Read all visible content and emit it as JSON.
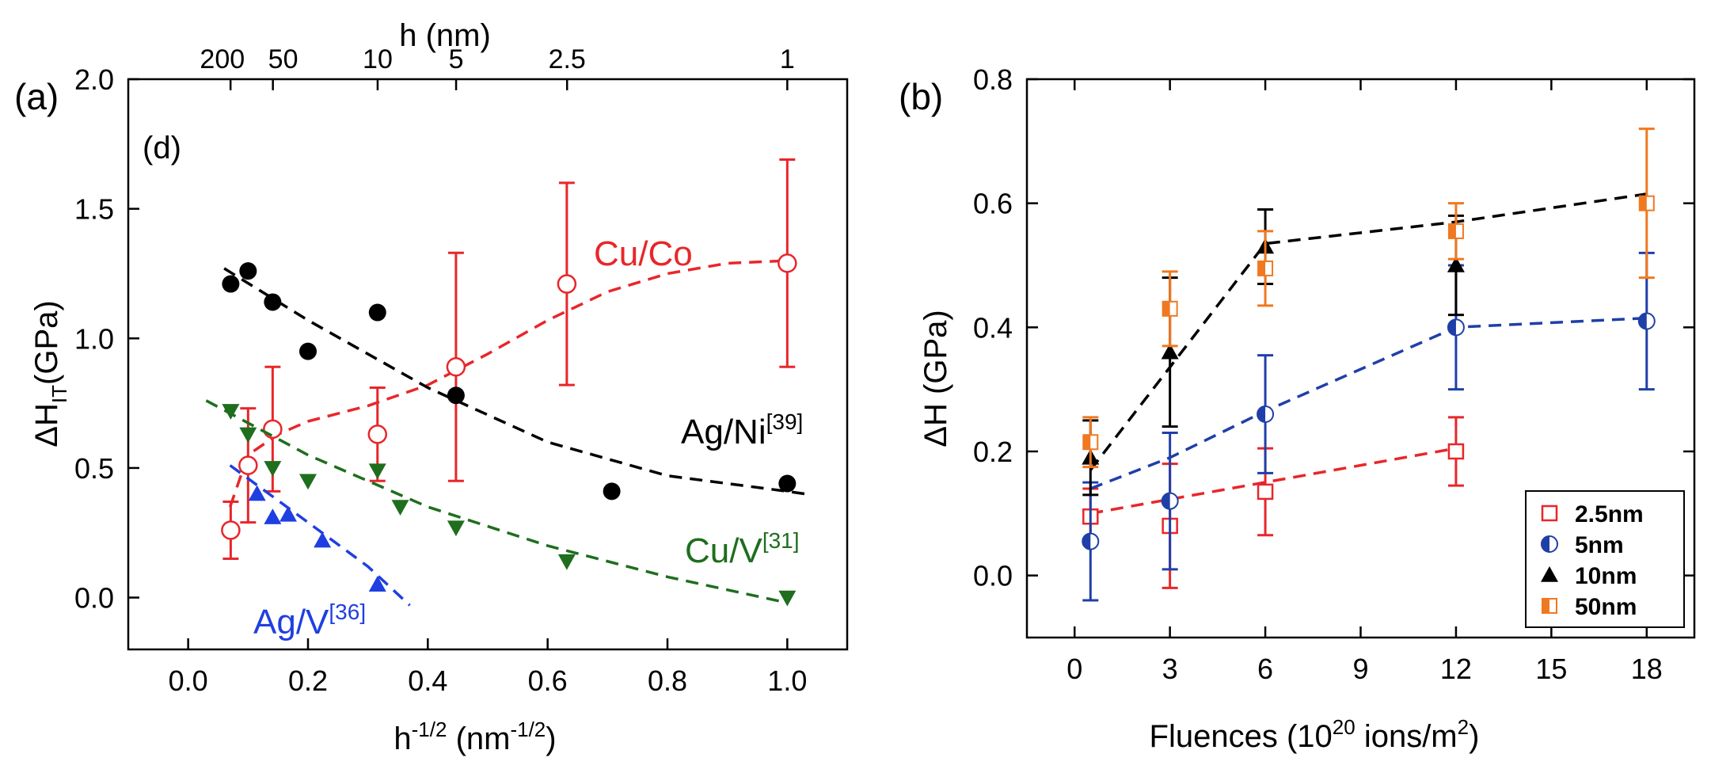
{
  "chart_data": [
    {
      "panel_label": "(a)",
      "inset_label": "(d)",
      "type": "scatter",
      "xlabel": "h",
      "xlabel_sup": "-1/2",
      "xlabel_units": "(nm",
      "xlabel_units_sup": "-1/2",
      "xlabel_close": ")",
      "ylabel": "ΔH",
      "ylabel_sub": "IT",
      "ylabel_units": "(GPa)",
      "top_label": "h (nm)",
      "xlim": [
        -0.1,
        1.1
      ],
      "ylim": [
        -0.2,
        2.0
      ],
      "xticks": [
        0.0,
        0.2,
        0.4,
        0.6,
        0.8,
        1.0
      ],
      "xtick_labels": [
        "0.0",
        "0.2",
        "0.4",
        "0.6",
        "0.8",
        "1.0"
      ],
      "yticks": [
        0.0,
        0.5,
        1.0,
        1.5,
        2.0
      ],
      "ytick_labels": [
        "0.0",
        "0.5",
        "1.0",
        "1.5",
        "2.0"
      ],
      "top_ticks": [
        200,
        50,
        10,
        5,
        2.5,
        1
      ],
      "top_tick_labels": [
        "200",
        "50",
        "10",
        "5",
        "2.5",
        "1"
      ],
      "series": [
        {
          "name": "Cu/Co",
          "color": "#e8262a",
          "marker": "open-circle",
          "points": [
            {
              "x": 0.071,
              "y": 0.26,
              "err": 0.11
            },
            {
              "x": 0.1,
              "y": 0.51,
              "err": 0.22
            },
            {
              "x": 0.141,
              "y": 0.65,
              "err": 0.24
            },
            {
              "x": 0.316,
              "y": 0.63,
              "err": 0.18
            },
            {
              "x": 0.447,
              "y": 0.89,
              "err": 0.44
            },
            {
              "x": 0.632,
              "y": 1.21,
              "err": 0.39
            },
            {
              "x": 1.0,
              "y": 1.29,
              "err": 0.4
            }
          ],
          "fit": [
            [
              0.07,
              0.35
            ],
            [
              0.1,
              0.55
            ],
            [
              0.15,
              0.63
            ],
            [
              0.2,
              0.68
            ],
            [
              0.3,
              0.74
            ],
            [
              0.4,
              0.82
            ],
            [
              0.5,
              0.94
            ],
            [
              0.6,
              1.07
            ],
            [
              0.7,
              1.18
            ],
            [
              0.8,
              1.25
            ],
            [
              0.9,
              1.29
            ],
            [
              1.0,
              1.3
            ]
          ]
        },
        {
          "name": "Ag/Ni",
          "name_ref": "[39]",
          "color": "#000000",
          "marker": "filled-circle",
          "points": [
            {
              "x": 0.071,
              "y": 1.21
            },
            {
              "x": 0.1,
              "y": 1.26
            },
            {
              "x": 0.141,
              "y": 1.14
            },
            {
              "x": 0.2,
              "y": 0.95
            },
            {
              "x": 0.316,
              "y": 1.1
            },
            {
              "x": 0.447,
              "y": 0.78
            },
            {
              "x": 0.707,
              "y": 0.41
            },
            {
              "x": 1.0,
              "y": 0.44
            }
          ],
          "fit": [
            [
              0.06,
              1.27
            ],
            [
              0.2,
              1.07
            ],
            [
              0.4,
              0.81
            ],
            [
              0.6,
              0.6
            ],
            [
              0.8,
              0.47
            ],
            [
              1.0,
              0.41
            ],
            [
              1.03,
              0.4
            ]
          ]
        },
        {
          "name": "Cu/V",
          "name_ref": "[31]",
          "color": "#1e6e1e",
          "marker": "filled-triangle-down",
          "points": [
            {
              "x": 0.071,
              "y": 0.72
            },
            {
              "x": 0.1,
              "y": 0.63
            },
            {
              "x": 0.141,
              "y": 0.5
            },
            {
              "x": 0.2,
              "y": 0.45
            },
            {
              "x": 0.316,
              "y": 0.49
            },
            {
              "x": 0.354,
              "y": 0.35
            },
            {
              "x": 0.447,
              "y": 0.27
            },
            {
              "x": 0.632,
              "y": 0.14
            },
            {
              "x": 1.0,
              "y": 0.0
            }
          ],
          "fit": [
            [
              0.03,
              0.76
            ],
            [
              0.2,
              0.55
            ],
            [
              0.4,
              0.35
            ],
            [
              0.6,
              0.2
            ],
            [
              0.8,
              0.08
            ],
            [
              1.0,
              -0.02
            ]
          ]
        },
        {
          "name": "Ag/V",
          "name_ref": "[36]",
          "color": "#1f3fe0",
          "marker": "filled-triangle-up",
          "points": [
            {
              "x": 0.115,
              "y": 0.4
            },
            {
              "x": 0.141,
              "y": 0.31
            },
            {
              "x": 0.167,
              "y": 0.32
            },
            {
              "x": 0.224,
              "y": 0.22
            },
            {
              "x": 0.316,
              "y": 0.05
            }
          ],
          "fit": [
            [
              0.07,
              0.51
            ],
            [
              0.2,
              0.29
            ],
            [
              0.3,
              0.12
            ],
            [
              0.37,
              -0.03
            ]
          ]
        }
      ]
    },
    {
      "panel_label": "(b)",
      "type": "scatter",
      "xlabel": "Fluences (10",
      "xlabel_sup": "20",
      "xlabel_rest": " ions/m",
      "xlabel_sup2": "2",
      "xlabel_close": ")",
      "ylabel": "ΔH (GPa)",
      "xlim": [
        -1.5,
        19.5
      ],
      "ylim": [
        -0.1,
        0.8
      ],
      "xticks": [
        0,
        3,
        6,
        9,
        12,
        15,
        18
      ],
      "xtick_labels": [
        "0",
        "3",
        "6",
        "9",
        "12",
        "15",
        "18"
      ],
      "yticks": [
        0.0,
        0.2,
        0.4,
        0.6,
        0.8
      ],
      "ytick_labels": [
        "0.0",
        "0.2",
        "0.4",
        "0.6",
        "0.8"
      ],
      "legend_position": "bottom-right",
      "series": [
        {
          "name": "2.5nm",
          "color": "#e8262a",
          "marker": "open-square",
          "points": [
            {
              "x": 0.5,
              "y": 0.095,
              "err": 0.045
            },
            {
              "x": 3,
              "y": 0.08,
              "err": 0.1
            },
            {
              "x": 6,
              "y": 0.135,
              "err": 0.07
            },
            {
              "x": 12,
              "y": 0.2,
              "err": 0.055
            }
          ],
          "fit": [
            [
              0.5,
              0.1
            ],
            [
              12,
              0.205
            ]
          ]
        },
        {
          "name": "5nm",
          "color": "#1f3fa8",
          "marker": "half-circle",
          "points": [
            {
              "x": 0.5,
              "y": 0.055,
              "err": 0.095
            },
            {
              "x": 3,
              "y": 0.12,
              "err": 0.11
            },
            {
              "x": 6,
              "y": 0.26,
              "err": 0.095
            },
            {
              "x": 12,
              "y": 0.4,
              "err": 0.1
            },
            {
              "x": 18,
              "y": 0.41,
              "err": 0.11
            }
          ],
          "fit": [
            [
              0.5,
              0.14
            ],
            [
              3,
              0.19
            ],
            [
              6,
              0.265
            ],
            [
              12,
              0.4
            ],
            [
              18,
              0.415
            ]
          ]
        },
        {
          "name": "10nm",
          "color": "#000000",
          "marker": "filled-triangle-up",
          "points": [
            {
              "x": 0.5,
              "y": 0.19,
              "err": 0.06
            },
            {
              "x": 3,
              "y": 0.36,
              "err": 0.12
            },
            {
              "x": 6,
              "y": 0.53,
              "err": 0.06
            },
            {
              "x": 12,
              "y": 0.5,
              "err": 0.08
            }
          ],
          "fit": [
            [
              0.5,
              0.17
            ],
            [
              6,
              0.535
            ],
            [
              12,
              0.57
            ],
            [
              18,
              0.615
            ]
          ]
        },
        {
          "name": "50nm",
          "color": "#f07820",
          "marker": "half-square",
          "points": [
            {
              "x": 0.5,
              "y": 0.215,
              "err": 0.04
            },
            {
              "x": 3,
              "y": 0.43,
              "err": 0.06
            },
            {
              "x": 6,
              "y": 0.495,
              "err": 0.06
            },
            {
              "x": 12,
              "y": 0.555,
              "err": 0.045
            },
            {
              "x": 18,
              "y": 0.6,
              "err": 0.12
            }
          ]
        }
      ]
    }
  ]
}
